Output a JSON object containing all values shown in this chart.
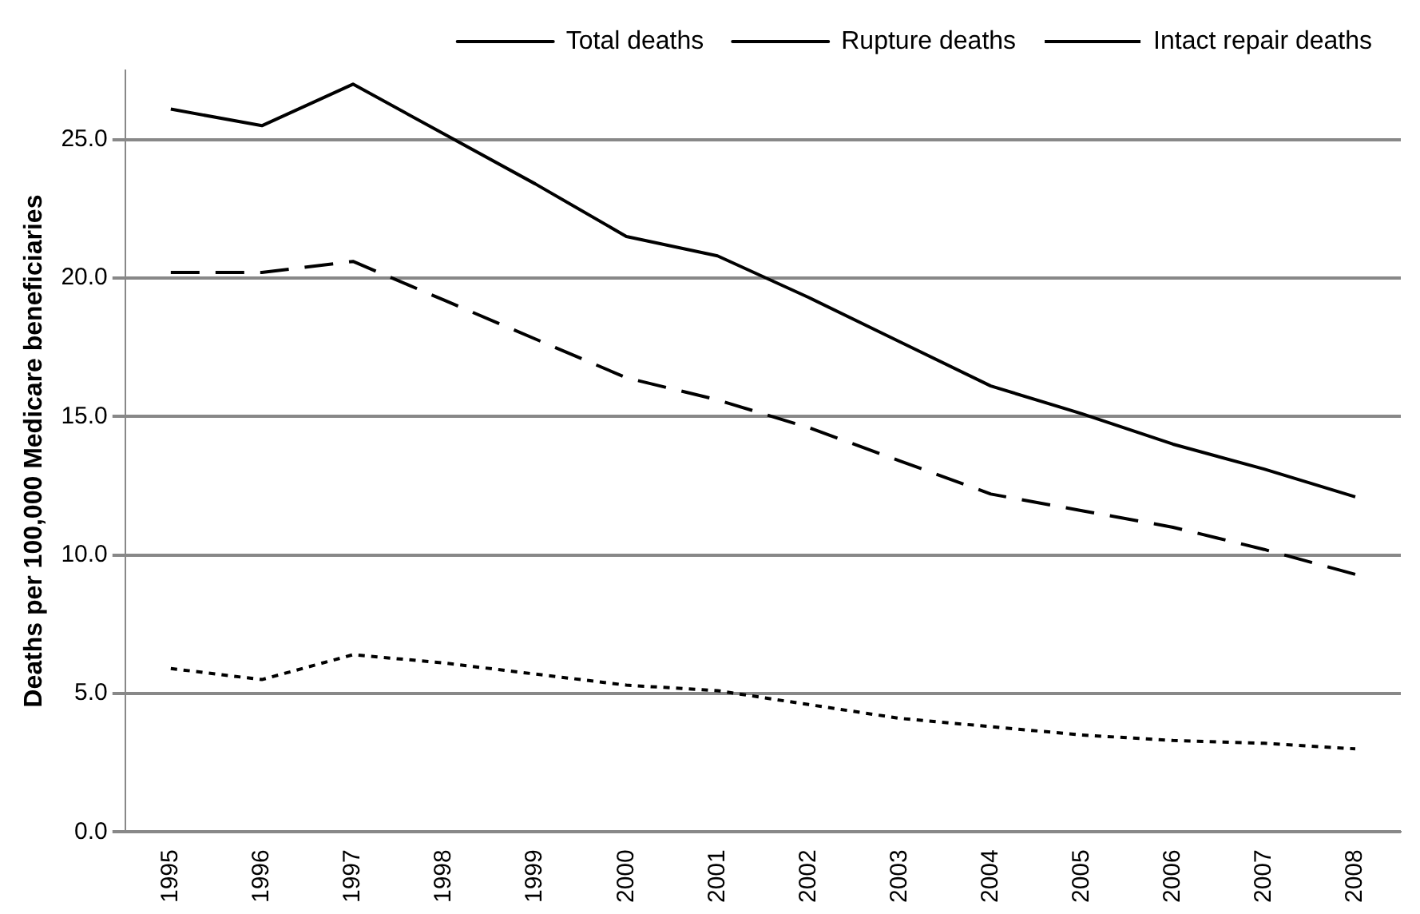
{
  "chart_data": {
    "type": "line",
    "categories": [
      "1995",
      "1996",
      "1997",
      "1998",
      "1999",
      "2000",
      "2001",
      "2002",
      "2003",
      "2004",
      "2005",
      "2006",
      "2007",
      "2008"
    ],
    "series": [
      {
        "name": "Total deaths",
        "color": "#000000",
        "line_style": "solid",
        "values": [
          26.1,
          25.5,
          27.0,
          25.2,
          23.4,
          21.5,
          20.8,
          19.3,
          17.7,
          16.1,
          15.1,
          14.0,
          13.1,
          12.1
        ]
      },
      {
        "name": "Rupture deaths",
        "color": "#000000",
        "line_style": "dashed",
        "values": [
          20.2,
          20.2,
          20.6,
          19.2,
          17.8,
          16.4,
          15.6,
          14.6,
          13.4,
          12.2,
          11.6,
          11.0,
          10.2,
          9.3
        ]
      },
      {
        "name": "Intact repair deaths",
        "color": "#000000",
        "line_style": "dotted",
        "values": [
          5.9,
          5.5,
          6.4,
          6.1,
          5.7,
          5.3,
          5.1,
          4.6,
          4.1,
          3.8,
          3.5,
          3.3,
          3.2,
          3.0
        ]
      }
    ],
    "ylabel": "Deaths per 100,000 Medicare beneficiaries",
    "ylim": [
      0,
      27.5
    ],
    "yticks": [
      {
        "value": 0,
        "label": "0.0"
      },
      {
        "value": 5,
        "label": "5.0"
      },
      {
        "value": 10,
        "label": "10.0"
      },
      {
        "value": 15,
        "label": "15.0"
      },
      {
        "value": 20,
        "label": "20.0"
      },
      {
        "value": 25,
        "label": "25.0"
      }
    ],
    "grid": "y",
    "legend": "top right",
    "marker": "none"
  }
}
